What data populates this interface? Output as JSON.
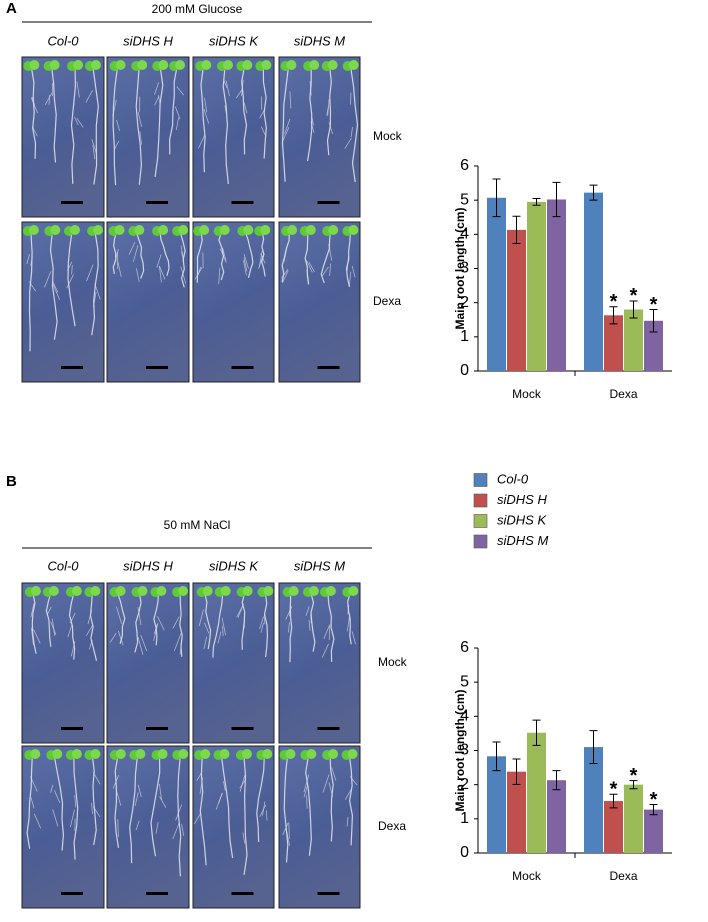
{
  "panels": [
    {
      "letter": "A",
      "treatment": "200 mM Glucose",
      "genotypes": [
        "Col-0",
        "siDHS H",
        "siDHS K",
        "siDHS M"
      ],
      "rows": [
        "Mock",
        "Dexa"
      ]
    },
    {
      "letter": "B",
      "treatment": "50 mM NaCl",
      "genotypes": [
        "Col-0",
        "siDHS H",
        "siDHS K",
        "siDHS M"
      ],
      "rows": [
        "Mock",
        "Dexa"
      ]
    }
  ],
  "chart_data": [
    {
      "type": "bar",
      "ylabel": "Main root length (cm)",
      "categories": [
        "Mock",
        "Dexa"
      ],
      "ylim": [
        0,
        6
      ],
      "yticks": [
        0,
        1,
        2,
        3,
        4,
        5,
        6
      ],
      "series": [
        {
          "name": "Col-0",
          "color": "#4f81bd",
          "values": [
            5.07,
            5.22
          ],
          "errors": [
            0.55,
            0.22
          ]
        },
        {
          "name": "siDHS H",
          "color": "#c0504d",
          "values": [
            4.13,
            1.63
          ],
          "errors": [
            0.4,
            0.25
          ],
          "significance": [
            null,
            "*"
          ]
        },
        {
          "name": "siDHS K",
          "color": "#9bbb59",
          "values": [
            4.95,
            1.8
          ],
          "errors": [
            0.1,
            0.25
          ],
          "significance": [
            null,
            "*"
          ]
        },
        {
          "name": "siDHS M",
          "color": "#8064a2",
          "values": [
            5.02,
            1.47
          ],
          "errors": [
            0.5,
            0.33
          ],
          "significance": [
            null,
            "*"
          ]
        }
      ]
    },
    {
      "type": "bar",
      "ylabel": "Main root length (cm)",
      "categories": [
        "Mock",
        "Dexa"
      ],
      "ylim": [
        0,
        6
      ],
      "yticks": [
        0,
        1,
        2,
        3,
        4,
        5,
        6
      ],
      "series": [
        {
          "color": "#4f81bd",
          "values": [
            2.83,
            3.1
          ],
          "errors": [
            0.42,
            0.48
          ]
        },
        {
          "color": "#c0504d",
          "values": [
            2.38,
            1.52
          ],
          "errors": [
            0.37,
            0.2
          ],
          "significance": [
            null,
            "*"
          ]
        },
        {
          "color": "#9bbb59",
          "values": [
            3.52,
            2.0
          ],
          "errors": [
            0.37,
            0.12
          ],
          "significance": [
            null,
            "*"
          ]
        },
        {
          "color": "#8064a2",
          "values": [
            2.13,
            1.27
          ],
          "errors": [
            0.28,
            0.15
          ],
          "significance": [
            null,
            "*"
          ]
        }
      ]
    }
  ]
}
